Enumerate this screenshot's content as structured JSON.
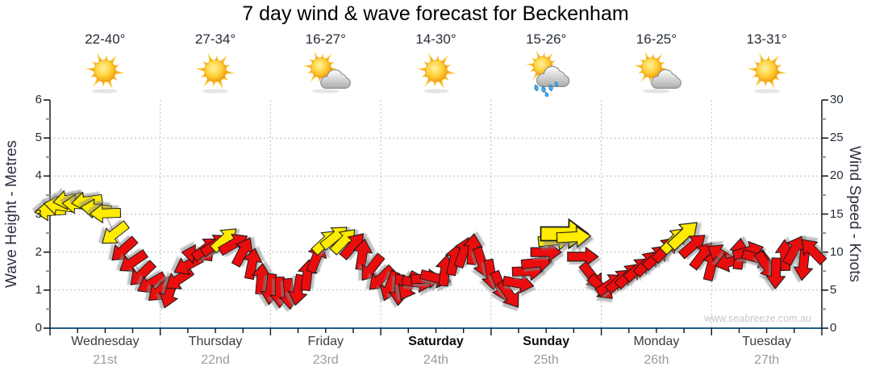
{
  "title": "7 day wind & wave forecast for Beckenham",
  "watermark": "www.seabreeze.com.au",
  "axes": {
    "left_label": "Wave Height - Metres",
    "right_label": "Wind Speed - Knots",
    "left_ticks": [
      0,
      1,
      2,
      3,
      4,
      5,
      6
    ],
    "right_ticks": [
      0,
      5,
      10,
      15,
      20,
      25,
      30
    ],
    "left_range_metres": [
      0,
      6
    ],
    "right_range_knots": [
      0,
      30
    ]
  },
  "days": [
    {
      "name": "Wednesday",
      "date": "21st",
      "temp": "22-40°",
      "icon": "sunny",
      "bold": false
    },
    {
      "name": "Thursday",
      "date": "22nd",
      "temp": "27-34°",
      "icon": "sunny",
      "bold": false
    },
    {
      "name": "Friday",
      "date": "23rd",
      "temp": "16-27°",
      "icon": "partly-cloudy",
      "bold": false
    },
    {
      "name": "Saturday",
      "date": "24th",
      "temp": "14-30°",
      "icon": "sunny",
      "bold": true
    },
    {
      "name": "Sunday",
      "date": "25th",
      "temp": "15-26°",
      "icon": "rain",
      "bold": true
    },
    {
      "name": "Monday",
      "date": "26th",
      "temp": "16-25°",
      "icon": "partly-cloudy",
      "bold": false
    },
    {
      "name": "Tuesday",
      "date": "27th",
      "temp": "13-31°",
      "icon": "sunny",
      "bold": false
    }
  ],
  "chart_data": {
    "type": "wind-arrow-series",
    "x_axis": "time, hours 0-167 starting Wednesday 21st 00:00 (one arrow every 2 h)",
    "y_axis": "wind speed in knots on right axis; left wave-height axis aligns 1 m = 5 kt",
    "grid": "dotted, horizontal every 1 m / 5 kt, vertical at day boundaries",
    "arrow_format": [
      "hour",
      "knots",
      "direction_deg_css_0_is_east_90_is_south",
      "color(y=yellow,r=red)",
      "scale_optional"
    ],
    "arrows": [
      [
        0,
        15.4,
        176,
        "y"
      ],
      [
        2,
        16.1,
        188,
        "y"
      ],
      [
        4,
        16.9,
        170,
        "y"
      ],
      [
        6,
        16.3,
        183,
        "y"
      ],
      [
        8,
        16.7,
        172,
        "y"
      ],
      [
        10,
        15.7,
        186,
        "y"
      ],
      [
        12,
        15.1,
        178,
        "y"
      ],
      [
        14,
        12.4,
        142,
        "y"
      ],
      [
        16,
        10.3,
        138,
        "r"
      ],
      [
        18,
        8.7,
        146,
        "r"
      ],
      [
        20,
        7.1,
        136,
        "r"
      ],
      [
        22,
        5.9,
        150,
        "r"
      ],
      [
        24,
        5.0,
        138,
        "r"
      ],
      [
        26,
        4.6,
        108,
        "r"
      ],
      [
        28,
        6.4,
        146,
        "r"
      ],
      [
        30,
        8.3,
        152,
        "r"
      ],
      [
        32,
        9.7,
        188,
        "r"
      ],
      [
        34,
        10.5,
        322,
        "r"
      ],
      [
        36,
        11.0,
        326,
        "r"
      ],
      [
        38,
        11.7,
        318,
        "y"
      ],
      [
        40,
        11.1,
        330,
        "r"
      ],
      [
        42,
        10.1,
        298,
        "r"
      ],
      [
        44,
        8.5,
        281,
        "r"
      ],
      [
        46,
        6.5,
        275,
        "r"
      ],
      [
        48,
        5.1,
        96,
        "r"
      ],
      [
        50,
        4.7,
        90,
        "r"
      ],
      [
        52,
        4.5,
        85,
        "r"
      ],
      [
        54,
        5.0,
        100,
        "r"
      ],
      [
        56,
        7.0,
        277,
        "r"
      ],
      [
        58,
        9.3,
        292,
        "r"
      ],
      [
        60,
        11.4,
        317,
        "y"
      ],
      [
        62,
        12.0,
        321,
        "y"
      ],
      [
        64,
        11.5,
        314,
        "y"
      ],
      [
        66,
        10.9,
        311,
        "r"
      ],
      [
        68,
        9.7,
        279,
        "r"
      ],
      [
        70,
        7.9,
        128,
        "r"
      ],
      [
        72,
        6.5,
        136,
        "r"
      ],
      [
        74,
        5.5,
        112,
        "r"
      ],
      [
        76,
        5.0,
        94,
        "r"
      ],
      [
        78,
        5.5,
        119,
        "r"
      ],
      [
        80,
        6.0,
        8,
        "r"
      ],
      [
        82,
        6.5,
        358,
        "r"
      ],
      [
        84,
        6.6,
        14,
        "r"
      ],
      [
        86,
        7.6,
        277,
        "r"
      ],
      [
        88,
        9.0,
        283,
        "r"
      ],
      [
        90,
        10.0,
        289,
        "r"
      ],
      [
        92,
        10.4,
        275,
        "r"
      ],
      [
        94,
        8.6,
        72,
        "r"
      ],
      [
        96,
        7.0,
        80,
        "r"
      ],
      [
        98,
        5.5,
        68,
        "r"
      ],
      [
        100,
        4.4,
        55,
        "r"
      ],
      [
        102,
        5.9,
        10,
        "r"
      ],
      [
        104,
        7.5,
        358,
        "r"
      ],
      [
        106,
        8.6,
        354,
        "r"
      ],
      [
        108,
        10.0,
        0,
        "r"
      ],
      [
        110,
        11.6,
        354,
        "y",
        1.1
      ],
      [
        112,
        12.4,
        0,
        "y",
        1.55
      ],
      [
        114,
        12.0,
        357,
        "y",
        1.1
      ],
      [
        116,
        9.4,
        0,
        "r"
      ],
      [
        118,
        6.8,
        52,
        "r"
      ],
      [
        120,
        5.3,
        44,
        "r"
      ],
      [
        122,
        5.8,
        326,
        "r"
      ],
      [
        124,
        6.3,
        318,
        "r"
      ],
      [
        126,
        7.0,
        315,
        "r"
      ],
      [
        128,
        7.8,
        319,
        "r"
      ],
      [
        130,
        8.6,
        313,
        "r"
      ],
      [
        132,
        9.4,
        316,
        "r"
      ],
      [
        134,
        10.4,
        313,
        "r"
      ],
      [
        136,
        11.6,
        315,
        "y",
        1.05
      ],
      [
        138,
        12.3,
        317,
        "y",
        1.15
      ],
      [
        140,
        10.9,
        319,
        "r"
      ],
      [
        142,
        9.6,
        307,
        "r"
      ],
      [
        144,
        8.3,
        284,
        "r"
      ],
      [
        146,
        9.7,
        211,
        "r"
      ],
      [
        148,
        8.7,
        166,
        "r"
      ],
      [
        150,
        9.8,
        276,
        "r"
      ],
      [
        152,
        10.1,
        344,
        "r"
      ],
      [
        154,
        9.2,
        16,
        "r"
      ],
      [
        156,
        8.2,
        56,
        "r"
      ],
      [
        158,
        7.2,
        92,
        "r"
      ],
      [
        160,
        9.6,
        268,
        "r"
      ],
      [
        162,
        10.3,
        299,
        "r"
      ],
      [
        164,
        8.3,
        96,
        "r"
      ],
      [
        166,
        10.2,
        226,
        "r"
      ]
    ]
  },
  "colors": {
    "arrow_red": "#ea1111",
    "arrow_yellow": "#ffec00",
    "arrow_outline": "#151515",
    "grid": "#bcbcbc",
    "axis_spine": "#1a1a1a",
    "bottom_axis": "#1f5c87",
    "tick_text": "#242c38",
    "axis_label_text": "#2c3142",
    "day_text": "#3c3c3c",
    "day_text_weekend": "#0d0d0d",
    "date_text": "#9b9b9b",
    "title_text": "#000000",
    "watermark_text": "#c3c7ca",
    "trend_line": "#a8a8a8",
    "minor_tick": "#8f8f8f"
  }
}
